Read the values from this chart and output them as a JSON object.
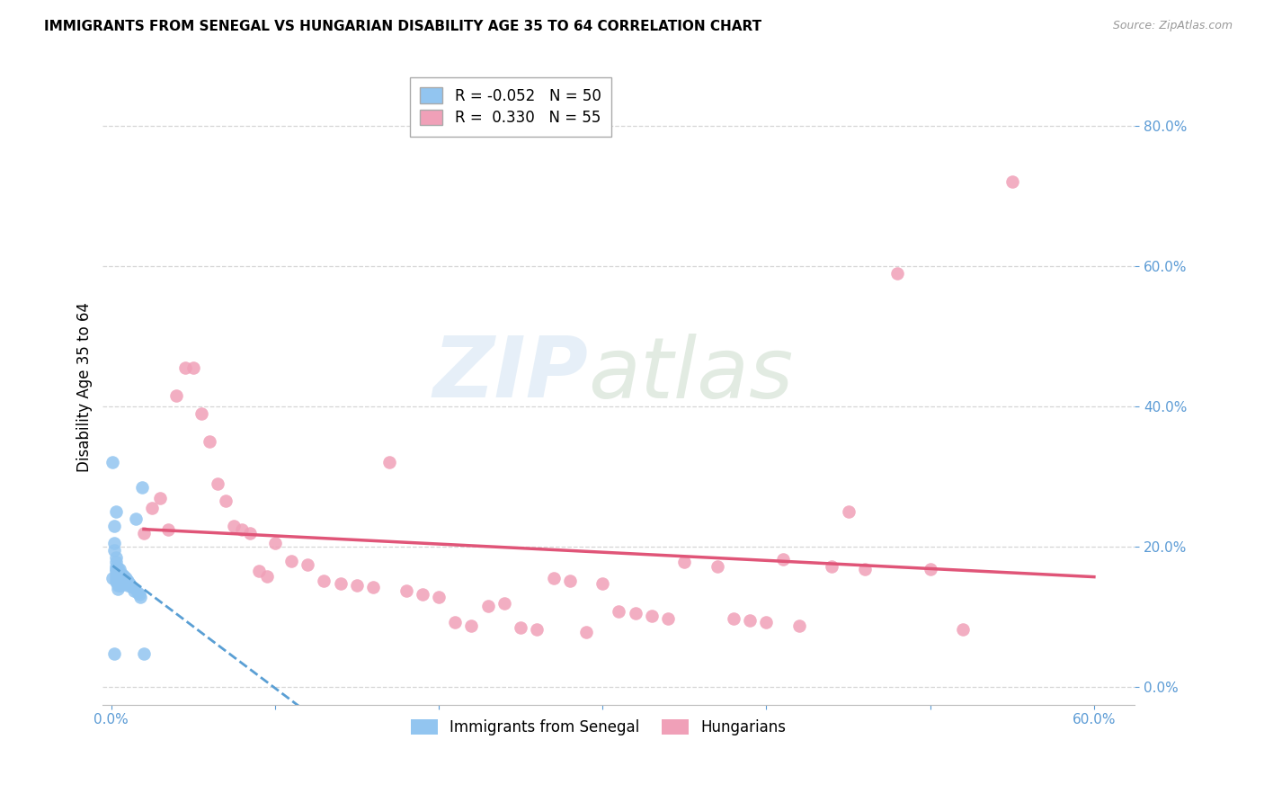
{
  "title": "IMMIGRANTS FROM SENEGAL VS HUNGARIAN DISABILITY AGE 35 TO 64 CORRELATION CHART",
  "source": "Source: ZipAtlas.com",
  "ylabel": "Disability Age 35 to 64",
  "senegal_color": "#92c5f0",
  "hungarian_color": "#f0a0b8",
  "senegal_line_color": "#5a9fd4",
  "hungarian_line_color": "#e05578",
  "R_senegal": -0.052,
  "N_senegal": 50,
  "R_hungarian": 0.33,
  "N_hungarian": 55,
  "background_color": "#ffffff",
  "grid_color": "#cccccc",
  "senegal_points": [
    [
      0.001,
      0.155
    ],
    [
      0.002,
      0.205
    ],
    [
      0.002,
      0.195
    ],
    [
      0.003,
      0.185
    ],
    [
      0.003,
      0.178
    ],
    [
      0.003,
      0.172
    ],
    [
      0.003,
      0.168
    ],
    [
      0.003,
      0.165
    ],
    [
      0.003,
      0.16
    ],
    [
      0.003,
      0.155
    ],
    [
      0.003,
      0.15
    ],
    [
      0.004,
      0.17
    ],
    [
      0.004,
      0.165
    ],
    [
      0.004,
      0.16
    ],
    [
      0.004,
      0.155
    ],
    [
      0.004,
      0.15
    ],
    [
      0.004,
      0.145
    ],
    [
      0.004,
      0.14
    ],
    [
      0.005,
      0.168
    ],
    [
      0.005,
      0.162
    ],
    [
      0.005,
      0.155
    ],
    [
      0.005,
      0.15
    ],
    [
      0.005,
      0.145
    ],
    [
      0.006,
      0.16
    ],
    [
      0.006,
      0.155
    ],
    [
      0.006,
      0.15
    ],
    [
      0.006,
      0.145
    ],
    [
      0.007,
      0.16
    ],
    [
      0.007,
      0.155
    ],
    [
      0.007,
      0.15
    ],
    [
      0.008,
      0.158
    ],
    [
      0.008,
      0.152
    ],
    [
      0.009,
      0.155
    ],
    [
      0.009,
      0.148
    ],
    [
      0.01,
      0.152
    ],
    [
      0.01,
      0.145
    ],
    [
      0.011,
      0.148
    ],
    [
      0.012,
      0.145
    ],
    [
      0.013,
      0.142
    ],
    [
      0.014,
      0.138
    ],
    [
      0.015,
      0.24
    ],
    [
      0.016,
      0.135
    ],
    [
      0.017,
      0.132
    ],
    [
      0.018,
      0.128
    ],
    [
      0.019,
      0.285
    ],
    [
      0.02,
      0.048
    ],
    [
      0.002,
      0.23
    ],
    [
      0.003,
      0.25
    ],
    [
      0.001,
      0.32
    ],
    [
      0.002,
      0.048
    ]
  ],
  "hungarian_points": [
    [
      0.02,
      0.22
    ],
    [
      0.025,
      0.255
    ],
    [
      0.03,
      0.27
    ],
    [
      0.035,
      0.225
    ],
    [
      0.04,
      0.415
    ],
    [
      0.045,
      0.455
    ],
    [
      0.05,
      0.455
    ],
    [
      0.055,
      0.39
    ],
    [
      0.06,
      0.35
    ],
    [
      0.065,
      0.29
    ],
    [
      0.07,
      0.265
    ],
    [
      0.075,
      0.23
    ],
    [
      0.08,
      0.225
    ],
    [
      0.085,
      0.22
    ],
    [
      0.09,
      0.165
    ],
    [
      0.095,
      0.158
    ],
    [
      0.1,
      0.205
    ],
    [
      0.11,
      0.18
    ],
    [
      0.12,
      0.175
    ],
    [
      0.13,
      0.152
    ],
    [
      0.14,
      0.148
    ],
    [
      0.15,
      0.145
    ],
    [
      0.16,
      0.142
    ],
    [
      0.17,
      0.32
    ],
    [
      0.18,
      0.138
    ],
    [
      0.19,
      0.132
    ],
    [
      0.2,
      0.128
    ],
    [
      0.21,
      0.092
    ],
    [
      0.22,
      0.088
    ],
    [
      0.23,
      0.115
    ],
    [
      0.24,
      0.12
    ],
    [
      0.25,
      0.085
    ],
    [
      0.26,
      0.082
    ],
    [
      0.27,
      0.155
    ],
    [
      0.28,
      0.152
    ],
    [
      0.29,
      0.078
    ],
    [
      0.3,
      0.148
    ],
    [
      0.31,
      0.108
    ],
    [
      0.32,
      0.105
    ],
    [
      0.33,
      0.102
    ],
    [
      0.34,
      0.098
    ],
    [
      0.35,
      0.178
    ],
    [
      0.37,
      0.172
    ],
    [
      0.38,
      0.098
    ],
    [
      0.39,
      0.095
    ],
    [
      0.4,
      0.092
    ],
    [
      0.41,
      0.182
    ],
    [
      0.42,
      0.088
    ],
    [
      0.44,
      0.172
    ],
    [
      0.45,
      0.25
    ],
    [
      0.46,
      0.168
    ],
    [
      0.48,
      0.59
    ],
    [
      0.5,
      0.168
    ],
    [
      0.52,
      0.082
    ],
    [
      0.55,
      0.72
    ]
  ]
}
